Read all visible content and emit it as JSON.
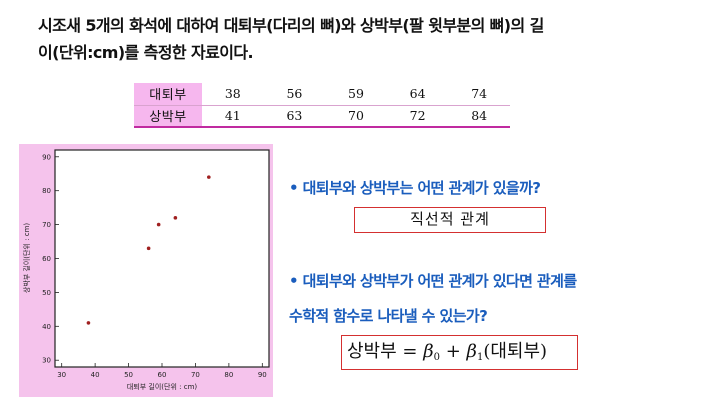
{
  "intro": {
    "line1": "시조새 5개의 화석에 대하여 대퇴부(다리의 뼈)와 상박부(팔 윗부분의 뼈)의 길",
    "line2": "이(단위:cm)를 측정한 자료이다."
  },
  "table": {
    "rows": [
      {
        "label": "대퇴부",
        "values": [
          "38",
          "56",
          "59",
          "64",
          "74"
        ]
      },
      {
        "label": "상박부",
        "values": [
          "41",
          "63",
          "70",
          "72",
          "84"
        ]
      }
    ]
  },
  "chart_data": {
    "type": "scatter",
    "x": [
      38,
      56,
      59,
      64,
      74
    ],
    "y": [
      41,
      63,
      70,
      72,
      84
    ],
    "xlabel": "대퇴부 길이(단위 : cm)",
    "ylabel": "상박부 길이(단위 : cm)",
    "xlim": [
      28,
      92
    ],
    "ylim": [
      28,
      92
    ],
    "xticks": [
      "30",
      "40",
      "50",
      "60",
      "70",
      "80",
      "90"
    ],
    "yticks": [
      "30",
      "40",
      "50",
      "60",
      "70",
      "80",
      "90"
    ],
    "grid": false,
    "point_color": "#a02020"
  },
  "questions": {
    "q1": "• 대퇴부와 상박부는 어떤 관계가 있을까?",
    "a1": "직선적 관계",
    "q2_line1": "• 대퇴부와 상박부가 어떤 관계가 있다면 관계를",
    "q2_line2": "수학적 함수로 나타낼 수 있는가?",
    "formula": {
      "lhs": "상박부",
      "eq": " = ",
      "beta": "β",
      "sub0": "0",
      "plus": " + ",
      "sub1": "1",
      "rhs": "(대퇴부)"
    }
  },
  "colors": {
    "bullet_text": "#1a5dbd",
    "answer_border": "#d43030",
    "table_header_bg": "#f6b7ee",
    "plot_bg": "#f5c3ec"
  }
}
